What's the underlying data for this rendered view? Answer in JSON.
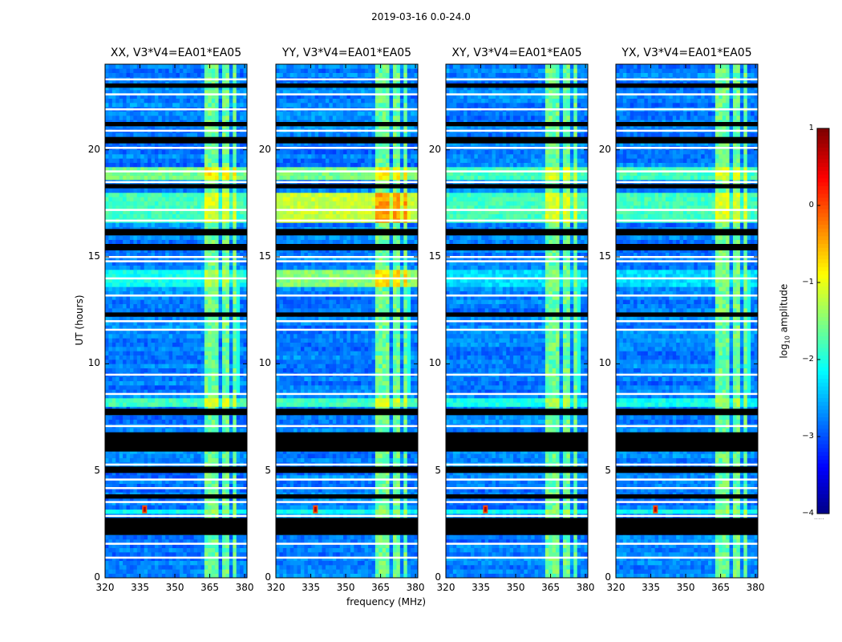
{
  "figure_title": "2019-03-16 0.0-24.0",
  "chart_data": [
    {
      "type": "heatmap",
      "title": "XX, V3*V4=EA01*EA05",
      "xlabel": "",
      "ylabel": "UT (hours)",
      "xlim": [
        320,
        381
      ],
      "ylim": [
        0,
        24
      ],
      "xticks": [
        320,
        335,
        350,
        365,
        380
      ],
      "yticks": [
        0,
        5,
        10,
        15,
        20
      ]
    },
    {
      "type": "heatmap",
      "title": "YY, V3*V4=EA01*EA05",
      "xlabel": "frequency (MHz)",
      "ylabel": "",
      "xlim": [
        320,
        381
      ],
      "ylim": [
        0,
        24
      ],
      "xticks": [
        320,
        335,
        350,
        365,
        380
      ],
      "yticks": [
        0,
        5,
        10,
        15,
        20
      ]
    },
    {
      "type": "heatmap",
      "title": "XY, V3*V4=EA01*EA05",
      "xlabel": "",
      "ylabel": "",
      "xlim": [
        320,
        381
      ],
      "ylim": [
        0,
        24
      ],
      "xticks": [
        320,
        335,
        350,
        365,
        380
      ],
      "yticks": [
        0,
        5,
        10,
        15,
        20
      ]
    },
    {
      "type": "heatmap",
      "title": "YX, V3*V4=EA01*EA05",
      "xlabel": "",
      "ylabel": "",
      "xlim": [
        320,
        381
      ],
      "ylim": [
        0,
        24
      ],
      "xticks": [
        320,
        335,
        350,
        365,
        380
      ],
      "yticks": [
        0,
        5,
        10,
        15,
        20
      ]
    }
  ],
  "colorbar": {
    "label_prefix": "log",
    "label_sub": "10",
    "label_suffix": " amplitude",
    "ticks": [
      "1",
      "0",
      "−1",
      "−2",
      "−3",
      "−4"
    ],
    "range": [
      -4,
      1
    ],
    "footer": "....."
  }
}
